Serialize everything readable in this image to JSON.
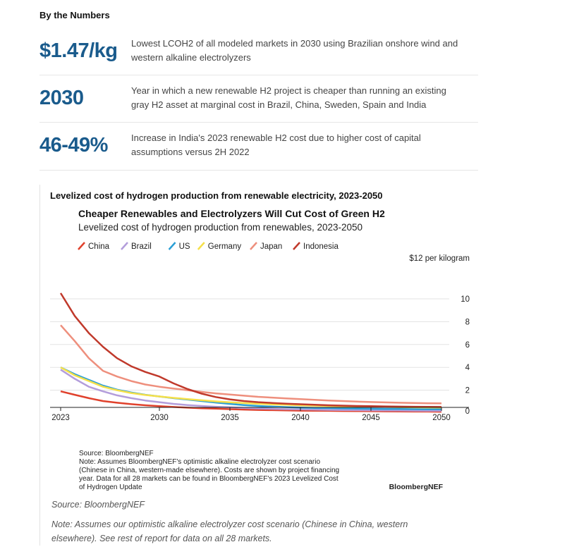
{
  "section": {
    "title": "By the Numbers"
  },
  "stats": [
    {
      "value": "$1.47/kg",
      "desc_line1": "Lowest LCOH2 of all modeled markets in 2030 using Brazilian onshore wind and",
      "desc_line2": "western alkaline electrolyzers"
    },
    {
      "value": "2030",
      "desc_line1": "Year in which a new renewable H2 project is cheaper than running an existing",
      "desc_line2": "gray H2 asset at marginal cost in Brazil, China, Sweden, Spain and India"
    },
    {
      "value": "46-49%",
      "desc_line1": "Increase in India's 2023 renewable H2 cost due to higher cost of capital",
      "desc_line2": "assumptions versus 2H 2022"
    }
  ],
  "chart_section": {
    "heading": "Levelized cost of hydrogen production from renewable electricity, 2023-2050"
  },
  "chart_data": {
    "type": "line",
    "title": "Cheaper Renewables and Electrolyzers Will Cut Cost of Green H2",
    "subtitle": "Levelized cost of hydrogen production from renewables, 2023-2050",
    "y_unit_label": "$12 per kilogram",
    "xlim": [
      2023,
      2050
    ],
    "ylim": [
      0,
      12
    ],
    "x_ticks": [
      2023,
      2030,
      2035,
      2040,
      2045,
      2050
    ],
    "y_ticks": [
      0,
      2,
      4,
      6,
      8,
      10
    ],
    "x": [
      2023,
      2024,
      2025,
      2026,
      2027,
      2028,
      2029,
      2030,
      2031,
      2032,
      2033,
      2034,
      2035,
      2036,
      2037,
      2038,
      2039,
      2040,
      2041,
      2042,
      2043,
      2044,
      2045,
      2046,
      2047,
      2048,
      2049,
      2050
    ],
    "series": [
      {
        "name": "China",
        "color": "#e0412c",
        "values": [
          1.9,
          1.6,
          1.3,
          1.05,
          0.9,
          0.78,
          0.68,
          0.6,
          0.53,
          0.47,
          0.42,
          0.38,
          0.34,
          0.3,
          0.27,
          0.25,
          0.23,
          0.21,
          0.2,
          0.19,
          0.18,
          0.17,
          0.16,
          0.15,
          0.14,
          0.13,
          0.13,
          0.12
        ]
      },
      {
        "name": "Brazil",
        "color": "#b39ddb",
        "values": [
          3.8,
          3.0,
          2.3,
          1.9,
          1.55,
          1.3,
          1.1,
          0.95,
          0.8,
          0.7,
          0.62,
          0.55,
          0.5,
          0.45,
          0.4,
          0.37,
          0.34,
          0.32,
          0.3,
          0.28,
          0.26,
          0.25,
          0.24,
          0.23,
          0.22,
          0.21,
          0.2,
          0.2
        ]
      },
      {
        "name": "US",
        "color": "#2a9fd6",
        "values": [
          4.0,
          3.4,
          2.9,
          2.4,
          2.05,
          1.8,
          1.6,
          1.45,
          1.3,
          1.18,
          1.05,
          0.92,
          0.8,
          0.7,
          0.62,
          0.56,
          0.52,
          0.48,
          0.45,
          0.43,
          0.41,
          0.39,
          0.37,
          0.36,
          0.35,
          0.34,
          0.33,
          0.32
        ]
      },
      {
        "name": "Germany",
        "color": "#f5e04a",
        "values": [
          4.0,
          3.3,
          2.8,
          2.3,
          2.0,
          1.75,
          1.58,
          1.45,
          1.33,
          1.22,
          1.12,
          1.02,
          0.94,
          0.87,
          0.81,
          0.76,
          0.72,
          0.68,
          0.65,
          0.62,
          0.6,
          0.58,
          0.56,
          0.54,
          0.52,
          0.5,
          0.49,
          0.48
        ]
      },
      {
        "name": "Japan",
        "color": "#ee8f7d",
        "values": [
          7.7,
          6.3,
          4.8,
          3.7,
          3.2,
          2.8,
          2.5,
          2.3,
          2.15,
          2.0,
          1.85,
          1.72,
          1.62,
          1.52,
          1.42,
          1.35,
          1.28,
          1.22,
          1.16,
          1.1,
          1.05,
          1.0,
          0.96,
          0.93,
          0.9,
          0.88,
          0.86,
          0.85
        ]
      },
      {
        "name": "Indonesia",
        "color": "#c0392b",
        "values": [
          10.5,
          8.5,
          7.0,
          5.8,
          4.8,
          4.1,
          3.6,
          3.2,
          2.6,
          2.1,
          1.7,
          1.4,
          1.2,
          1.05,
          0.95,
          0.88,
          0.82,
          0.77,
          0.72,
          0.68,
          0.65,
          0.62,
          0.6,
          0.58,
          0.56,
          0.55,
          0.54,
          0.53
        ]
      }
    ],
    "source_lines": [
      "Source: BloombergNEF",
      "Note: Assumes BloombergNEF's optimistic alkaline electrolyzer cost scenario",
      "(Chinese in China, western-made elsewhere). Costs are shown by project financing",
      "year. Data for all 28 markets can be found in BloombergNEF's 2023 Levelized Cost",
      "of Hydrogen Update"
    ],
    "brand": "BloombergNEF"
  },
  "footer": {
    "source": "Source: BloombergNEF",
    "note_line1": "Note: Assumes our optimistic alkaline electrolyzer cost scenario (Chinese in China, western",
    "note_line2": "elsewhere). See rest of report for data on all 28 markets."
  }
}
